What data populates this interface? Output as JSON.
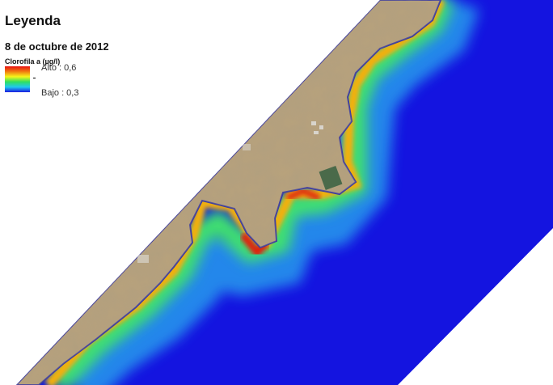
{
  "legend": {
    "title": "Leyenda",
    "date": "8 de octubre de 2012",
    "variable": "Clorofila a (µg/l)",
    "high_label": "Alto : 0,6",
    "low_label": "Bajo : 0,3",
    "ramp_colors": [
      "#e81010",
      "#f07a10",
      "#f5f51a",
      "#30e060",
      "#20c8f0",
      "#1a1ae0"
    ]
  },
  "map": {
    "water_color": "#1414e0",
    "land_color": "#b8a27c"
  }
}
